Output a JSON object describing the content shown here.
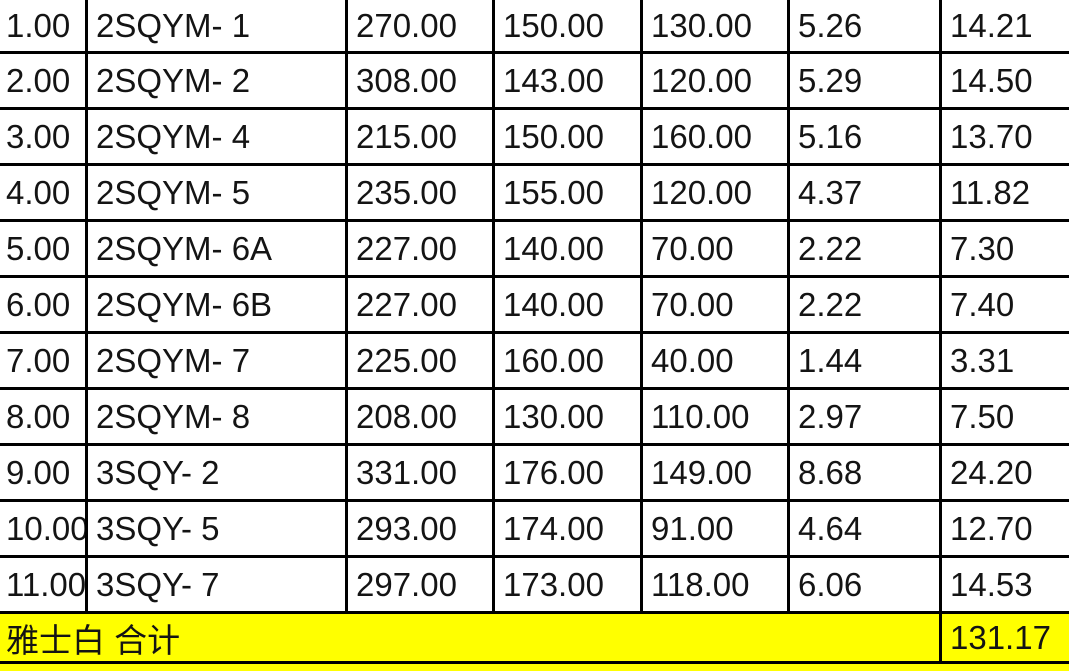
{
  "colors": {
    "highlight": "#ffff00",
    "grid_line": "#000000",
    "cell_background": "#ffffff",
    "text": "#141414"
  },
  "table": {
    "rows": [
      [
        "1.00",
        "2SQYM- 1",
        "270.00",
        "150.00",
        "130.00",
        "5.26",
        "14.21"
      ],
      [
        "2.00",
        "2SQYM- 2",
        "308.00",
        "143.00",
        "120.00",
        "5.29",
        "14.50"
      ],
      [
        "3.00",
        "2SQYM- 4",
        "215.00",
        "150.00",
        "160.00",
        "5.16",
        "13.70"
      ],
      [
        "4.00",
        "2SQYM- 5",
        "235.00",
        "155.00",
        "120.00",
        "4.37",
        "11.82"
      ],
      [
        "5.00",
        "2SQYM- 6A",
        "227.00",
        "140.00",
        "70.00",
        "2.22",
        "7.30"
      ],
      [
        "6.00",
        "2SQYM- 6B",
        "227.00",
        "140.00",
        "70.00",
        "2.22",
        "7.40"
      ],
      [
        "7.00",
        "2SQYM- 7",
        "225.00",
        "160.00",
        "40.00",
        "1.44",
        "3.31"
      ],
      [
        "8.00",
        "2SQYM- 8",
        "208.00",
        "130.00",
        "110.00",
        "2.97",
        "7.50"
      ],
      [
        "9.00",
        "3SQY- 2",
        "331.00",
        "176.00",
        "149.00",
        "8.68",
        "24.20"
      ],
      [
        "10.00",
        "3SQY- 5",
        "293.00",
        "174.00",
        "91.00",
        "4.64",
        "12.70"
      ],
      [
        "11.00",
        "3SQY- 7",
        "297.00",
        "173.00",
        "118.00",
        "6.06",
        "14.53"
      ]
    ],
    "total_row": {
      "label": "雅士白 合计",
      "value": "131.17"
    }
  }
}
